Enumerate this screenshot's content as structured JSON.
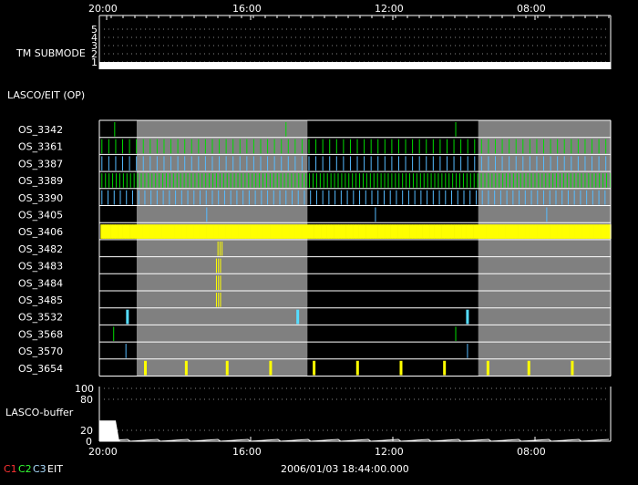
{
  "chart_data": {
    "type": "timeline",
    "time_ticks": [
      "20:00",
      "16:00",
      "12:00",
      "08:00"
    ],
    "date_label": "2006/01/03 18:44:00.000",
    "tm_submode": {
      "label": "TM SUBMODE",
      "levels": [
        "5",
        "4",
        "3",
        "2",
        "1"
      ],
      "value": 1
    },
    "section_label": "LASCO/EIT (OP)",
    "shaded_intervals": [
      [
        0.073,
        0.407
      ],
      [
        0.741,
        1.0
      ]
    ],
    "rows": [
      {
        "name": "OS_3342",
        "color": "#00dd00",
        "events": [
          0.03,
          0.365,
          0.697
        ]
      },
      {
        "name": "OS_3361",
        "color": "#00dd00",
        "pattern": "dense",
        "period": 0.0135
      },
      {
        "name": "OS_3387",
        "color": "#55bbff",
        "pattern": "dense",
        "period": 0.0135
      },
      {
        "name": "OS_3389",
        "color": "#00dd00",
        "pattern": "dense",
        "period": 0.007
      },
      {
        "name": "OS_3390",
        "color": "#55bbff",
        "pattern": "dense",
        "period": 0.012
      },
      {
        "name": "OS_3405",
        "color": "#55bbff",
        "events": [
          0.21,
          0.54,
          0.875
        ]
      },
      {
        "name": "OS_3406",
        "color": "#ffff00",
        "pattern": "dense",
        "period": 0.0048,
        "thick": true
      },
      {
        "name": "OS_3482",
        "color": "#ffff00",
        "events": [
          0.232,
          0.236,
          0.24
        ]
      },
      {
        "name": "OS_3483",
        "color": "#ffff00",
        "events": [
          0.229,
          0.233,
          0.237
        ]
      },
      {
        "name": "OS_3484",
        "color": "#ffff00",
        "events": [
          0.229,
          0.233,
          0.237
        ]
      },
      {
        "name": "OS_3485",
        "color": "#ffff00",
        "events": [
          0.229,
          0.233,
          0.237
        ]
      },
      {
        "name": "OS_3532",
        "color": "#55ddff",
        "events": [
          0.055,
          0.388,
          0.72
        ],
        "thick": true
      },
      {
        "name": "OS_3568",
        "color": "#00dd00",
        "events": [
          0.028,
          0.697
        ]
      },
      {
        "name": "OS_3570",
        "color": "#55bbff",
        "events": [
          0.052,
          0.72
        ]
      },
      {
        "name": "OS_3654",
        "color": "#ffff00",
        "events": [
          0.09,
          0.17,
          0.25,
          0.335,
          0.42,
          0.505,
          0.59,
          0.675,
          0.76,
          0.84,
          0.925
        ],
        "thick": true
      }
    ],
    "buffer": {
      "label": "LASCO-buffer",
      "ticks": [
        "100",
        "80",
        "20",
        "0"
      ],
      "initial_level": 38
    },
    "legend": [
      {
        "label": "C1",
        "color": "#ff3333"
      },
      {
        "label": "C2",
        "color": "#33ff33"
      },
      {
        "label": "C3",
        "color": "#aaddff"
      },
      {
        "label": "EIT",
        "color": "#ffffff"
      }
    ]
  }
}
